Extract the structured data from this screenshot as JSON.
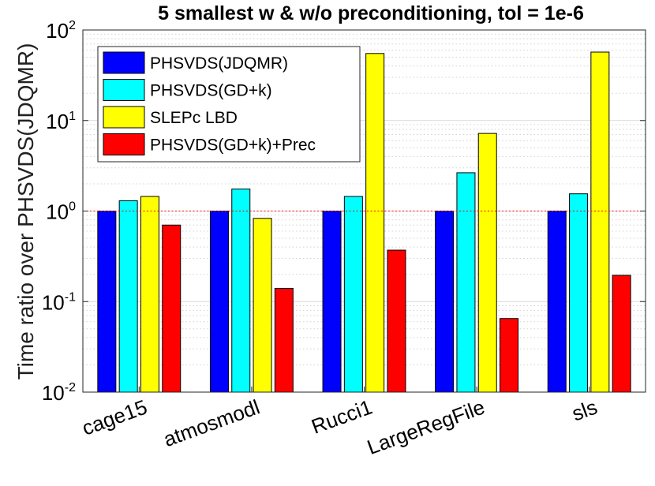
{
  "chart_data": {
    "type": "bar",
    "title": "5 smallest w & w/o preconditioning, tol = 1e-6",
    "xlabel": "",
    "ylabel": "Time ratio over PHSVDS(JDQMR)",
    "yscale": "log",
    "ylim": [
      0.01,
      100
    ],
    "yticks": [
      {
        "base": "10",
        "exp": "-2"
      },
      {
        "base": "10",
        "exp": "-1"
      },
      {
        "base": "10",
        "exp": "0"
      },
      {
        "base": "10",
        "exp": "1"
      },
      {
        "base": "10",
        "exp": "2"
      }
    ],
    "reference_line": 1,
    "grid": true,
    "legend_position": "top-left",
    "categories": [
      "cage15",
      "atmosmodl",
      "Rucci1",
      "LargeRegFile",
      "sls"
    ],
    "series": [
      {
        "name": "PHSVDS(JDQMR)",
        "color": "#0000ff",
        "values": [
          1.0,
          1.0,
          1.0,
          1.0,
          1.0
        ]
      },
      {
        "name": "PHSVDS(GD+k)",
        "color": "#00ffff",
        "values": [
          1.3,
          1.75,
          1.45,
          2.65,
          1.55
        ]
      },
      {
        "name": "SLEPc LBD",
        "color": "#ffff00",
        "values": [
          1.45,
          0.83,
          55,
          7.2,
          57
        ]
      },
      {
        "name": "PHSVDS(GD+k)+Prec",
        "color": "#ff0000",
        "values": [
          0.7,
          0.14,
          0.37,
          0.065,
          0.195
        ]
      }
    ]
  }
}
